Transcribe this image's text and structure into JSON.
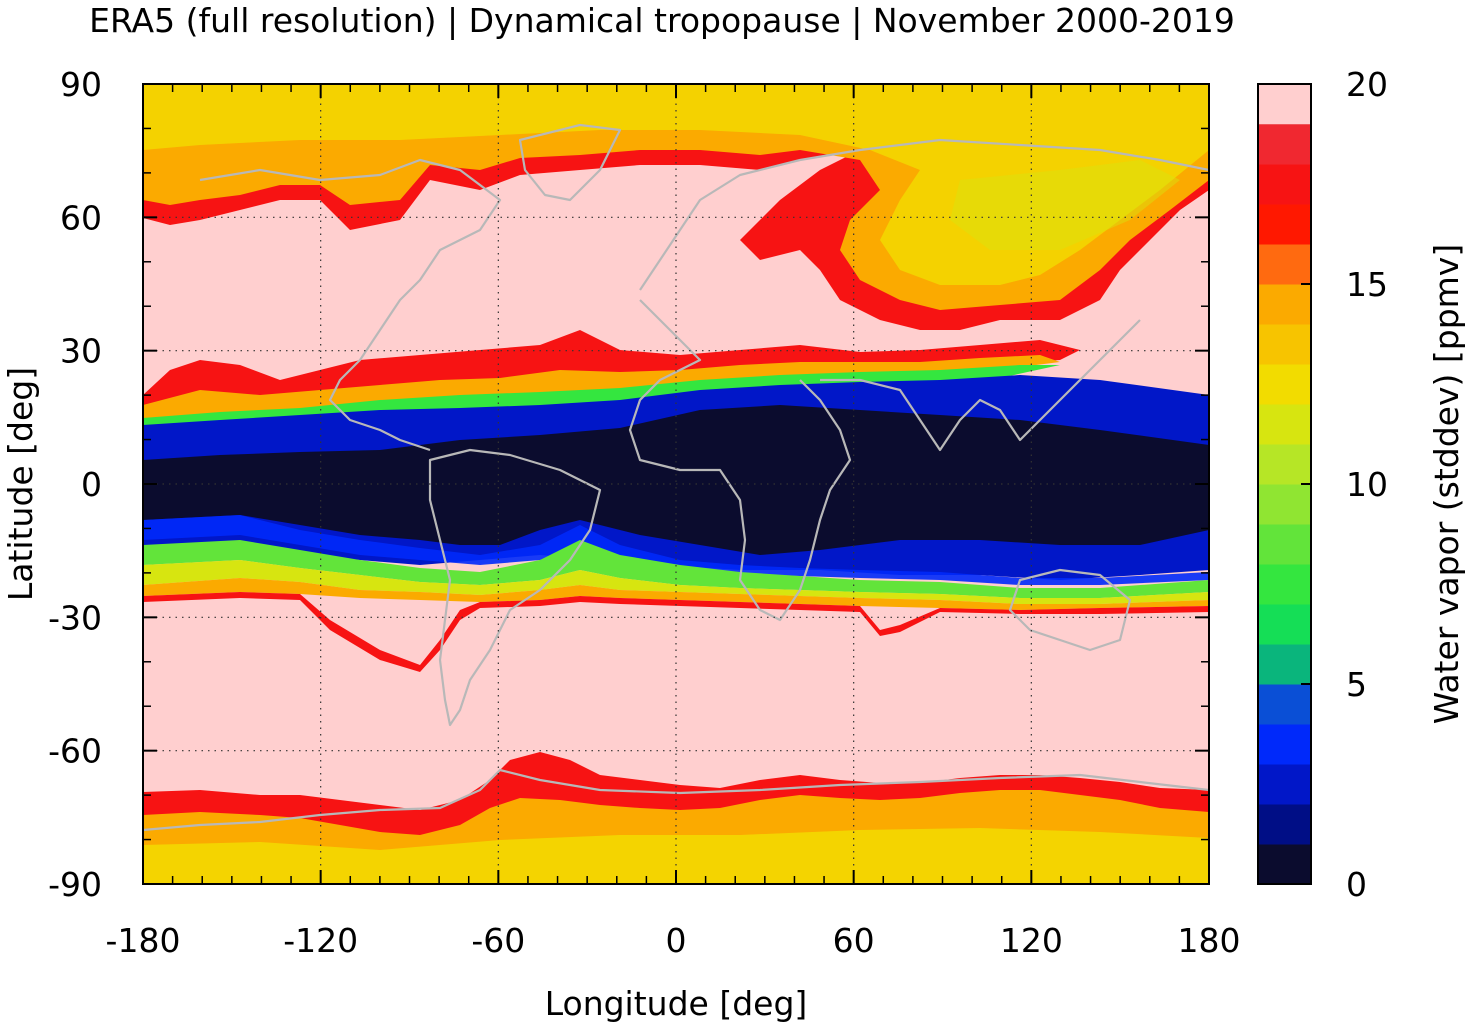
{
  "chart_data": {
    "type": "heatmap",
    "title": "ERA5 (full resolution) | Dynamical tropopause | November 2000-2019",
    "xlabel": "Longitude [deg]",
    "ylabel": "Latitude [deg]",
    "xlim": [
      -180,
      180
    ],
    "ylim": [
      -90,
      90
    ],
    "xticks": [
      -180,
      -120,
      -60,
      0,
      60,
      120,
      180
    ],
    "yticks": [
      90,
      60,
      30,
      0,
      -30,
      -60,
      -90
    ],
    "grid": true,
    "colorbar": {
      "label": "Water vapor (stddev) [ppmv]",
      "range": [
        0,
        20
      ],
      "ticks": [
        20,
        15,
        10,
        5,
        0
      ],
      "colors": [
        "#0b0c2e",
        "#000e86",
        "#0117c8",
        "#0029fa",
        "#0a4fd6",
        "#0a76a6",
        "#0ab57c",
        "#15de56",
        "#34e63f",
        "#62e43a",
        "#90e532",
        "#b6e626",
        "#d7e510",
        "#f2dc00",
        "#f7c400",
        "#fbaa00",
        "#ff8a00",
        "#ff6a10",
        "#ff1800",
        "#f71313",
        "#f02830",
        "#f08080",
        "#ffcfcf"
      ],
      "over_color": "#ffcfcf"
    },
    "bands": [
      {
        "lat_from": 90,
        "lat_to": 62,
        "value": 12,
        "note": "yellow-orange polar cap"
      },
      {
        "lat_from": 62,
        "lat_to": 30,
        "value": 20,
        "note": "pink"
      },
      {
        "lat_from": 30,
        "lat_to": 20,
        "value": 15,
        "note": "red/orange transition"
      },
      {
        "lat_from": 20,
        "lat_to": 10,
        "value": 4,
        "note": "blue"
      },
      {
        "lat_from": 10,
        "lat_to": -10,
        "value": 0.5,
        "note": "dark navy"
      },
      {
        "lat_from": -10,
        "lat_to": -20,
        "value": 4,
        "note": "blue"
      },
      {
        "lat_from": -20,
        "lat_to": -28,
        "value": 9,
        "note": "green/yellow"
      },
      {
        "lat_from": -28,
        "lat_to": -68,
        "value": 20,
        "note": "pink"
      },
      {
        "lat_from": -68,
        "lat_to": -75,
        "value": 16,
        "note": "red"
      },
      {
        "lat_from": -75,
        "lat_to": -90,
        "value": 12,
        "note": "yellow-orange"
      }
    ],
    "coastline_color": "#b8b8b8"
  }
}
